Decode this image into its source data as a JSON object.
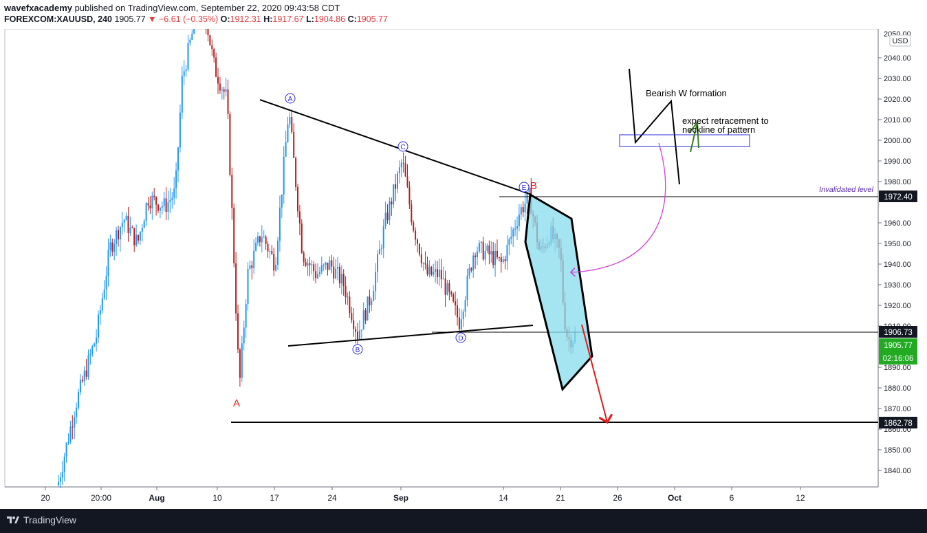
{
  "header": {
    "publisher": "wavefxacademy",
    "published_text": "published on TradingView.com, September 22, 2020 09:43:58 CDT",
    "symbol": "FOREXCOM:XAUUSD, 240",
    "last": "1905.77",
    "change": "▼ −6.61 (−0.35%)",
    "o_label": "O:",
    "o_value": "1912.31",
    "h_label": "H:",
    "h_value": "1917.67",
    "l_label": "L:",
    "l_value": "1904.86",
    "c_label": "C:",
    "c_value": "1905.77"
  },
  "footer": {
    "brand": "TradingView"
  },
  "colors": {
    "up": "#2196f3",
    "down": "#b71c1c",
    "accent_green": "#22ab22",
    "pattern_fill": "#86dcec",
    "footer_bg": "#131722"
  },
  "chart_data": {
    "type": "candlestick",
    "currency_badge": "USD",
    "y_ticks": [
      "2040.00",
      "2030.00",
      "2020.00",
      "2010.00",
      "2000.00",
      "1990.00",
      "1980.00",
      "1960.00",
      "1950.00",
      "1940.00",
      "1930.00",
      "1920.00",
      "1910.00",
      "1890.00",
      "1880.00",
      "1870.00",
      "1860.00",
      "1850.00",
      "1840.00"
    ],
    "y_top_partial": "2050.00",
    "ylim": [
      1832,
      2054
    ],
    "x_ticks": [
      "20",
      "20:00",
      "Aug",
      "10",
      "17",
      "24",
      "Sep",
      "14",
      "21",
      "26",
      "Oct",
      "6",
      "12"
    ],
    "price_tags": {
      "invalidated_level": "1972.40",
      "support_level": "1906.73",
      "last_price": "1905.77",
      "countdown": "02:16:06",
      "target_level": "1862.78"
    },
    "annotations": {
      "invalidated_label": "Invalidated level",
      "bearish_w": "Bearish W formation",
      "retracement_line1": "expect retracement to",
      "retracement_line2": "neckline of pattern",
      "wave_A": "A",
      "wave_B": "B",
      "wave_C": "C",
      "wave_D": "D",
      "wave_E": "E",
      "big_A": "A",
      "big_B": "B"
    },
    "key_prices": {
      "triangle_upper_start": 2019,
      "triangle_upper_end": 1973,
      "triangle_lower_start": 1899,
      "triangle_lower_end": 1907,
      "swing_high": 2060,
      "swing_low_A": 1862.78,
      "E_high": 1973,
      "current": 1905.77
    }
  }
}
